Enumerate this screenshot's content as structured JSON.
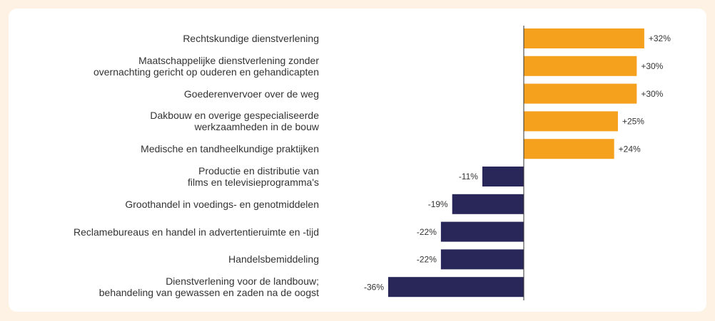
{
  "chart_data": {
    "type": "bar",
    "orientation": "horizontal",
    "categories": [
      "Rechtskundige dienstverlening",
      "Maatschappelijke dienstverlening zonder\novernachting gericht op ouderen en gehandicapten",
      "Goederenvervoer over de weg",
      "Dakbouw en overige gespecialiseerde\nwerkzaamheden in de bouw",
      "Medische en tandheelkundige praktijken",
      "Productie en distributie van\nfilms en televisieprogramma's",
      "Groothandel in voedings- en genotmiddelen",
      "Reclamebureaus en handel in advertentieruimte en -tijd",
      "Handelsbemiddeling",
      "Dienstverlening voor de landbouw;\nbehandeling van gewassen en zaden na de oogst"
    ],
    "values": [
      32,
      30,
      30,
      25,
      24,
      -11,
      -19,
      -22,
      -22,
      -36
    ],
    "value_labels": [
      "+32%",
      "+30%",
      "+30%",
      "+25%",
      "+24%",
      "-11%",
      "-19%",
      "-22%",
      "-22%",
      "-36%"
    ],
    "positive_color": "#f5a11e",
    "negative_color": "#29265a"
  }
}
